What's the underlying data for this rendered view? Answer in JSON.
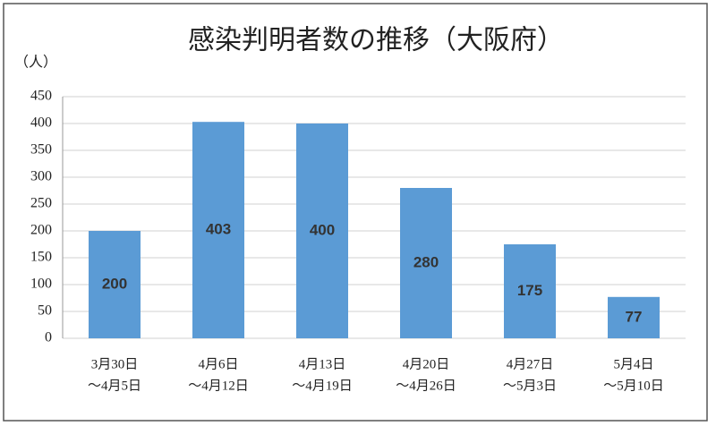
{
  "chart_data": {
    "type": "bar",
    "title": "感染判明者数の推移（大阪府）",
    "ylabel": "（人）",
    "categories": [
      [
        "3月30日",
        "～4月5日"
      ],
      [
        "4月6日",
        "～4月12日"
      ],
      [
        "4月13日",
        "～4月19日"
      ],
      [
        "4月20日",
        "～4月26日"
      ],
      [
        "4月27日",
        "～5月3日"
      ],
      [
        "5月4日",
        "～5月10日"
      ]
    ],
    "values": [
      200,
      403,
      400,
      280,
      175,
      77
    ],
    "color": "#5b9bd5",
    "ylim": [
      0,
      450
    ],
    "yticks": [
      0,
      50,
      100,
      150,
      200,
      250,
      300,
      350,
      400,
      450
    ],
    "grid": true
  }
}
